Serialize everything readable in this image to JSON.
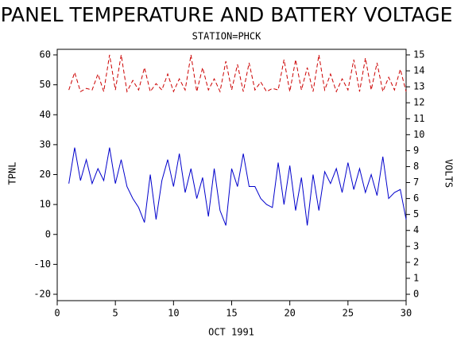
{
  "chart_data": {
    "type": "line",
    "title": "PANEL TEMPERATURE AND BATTERY VOLTAGE",
    "subtitle": "STATION=PHCK",
    "xlabel": "OCT 1991",
    "ylabel": "TPNL",
    "y2label": "VOLTS",
    "x": [
      1,
      1.5,
      2,
      2.5,
      3,
      3.5,
      4,
      4.5,
      5,
      5.5,
      6,
      6.5,
      7,
      7.5,
      8,
      8.5,
      9,
      9.5,
      10,
      10.5,
      11,
      11.5,
      12,
      12.5,
      13,
      13.5,
      14,
      14.5,
      15,
      15.5,
      16,
      16.5,
      17,
      17.5,
      18,
      18.5,
      19,
      19.5,
      20,
      20.5,
      21,
      21.5,
      22,
      22.5,
      23,
      23.5,
      24,
      24.5,
      25,
      25.5,
      26,
      26.5,
      27,
      27.5,
      28,
      28.5,
      29,
      29.5,
      30
    ],
    "series": [
      {
        "name": "TPNL",
        "color": "#0000cc",
        "axis": "y",
        "values": [
          17,
          29,
          18,
          25,
          17,
          22,
          18,
          29,
          17,
          25,
          16,
          12,
          9,
          4,
          20,
          5,
          18,
          25,
          16,
          27,
          14,
          22,
          12,
          19,
          6,
          22,
          8,
          3,
          22,
          16,
          27,
          16,
          16,
          12,
          10,
          9,
          24,
          10,
          23,
          8,
          19,
          3,
          20,
          8,
          21,
          17,
          22,
          14,
          24,
          15,
          22,
          14,
          20,
          13,
          26,
          12,
          14,
          15,
          5
        ]
      },
      {
        "name": "VOLTS",
        "color": "#cc0000",
        "axis": "y2",
        "dashed": true,
        "values": [
          12.8,
          13.9,
          12.7,
          12.9,
          12.8,
          13.8,
          12.7,
          15,
          12.8,
          15,
          12.7,
          13.4,
          12.8,
          14.2,
          12.7,
          13.2,
          12.8,
          13.8,
          12.7,
          13.5,
          12.8,
          15,
          12.7,
          14.2,
          12.8,
          13.5,
          12.7,
          14.6,
          12.8,
          14.4,
          12.7,
          14.5,
          12.8,
          13.3,
          12.7,
          12.9,
          12.8,
          14.7,
          12.7,
          14.7,
          12.8,
          14.2,
          12.7,
          15,
          12.8,
          13.8,
          12.7,
          13.5,
          12.8,
          14.7,
          12.7,
          14.8,
          12.8,
          14.5,
          12.7,
          13.6,
          12.8,
          14.1,
          12.7
        ]
      }
    ],
    "xlim": [
      0,
      30
    ],
    "xticks": [
      0,
      5,
      10,
      15,
      20,
      25,
      30
    ],
    "ylim": [
      -20,
      60
    ],
    "yticks": [
      -20,
      -10,
      0,
      10,
      20,
      30,
      40,
      50,
      60
    ],
    "y2lim": [
      0,
      15
    ],
    "y2ticks": [
      0,
      1,
      2,
      3,
      4,
      5,
      6,
      7,
      8,
      9,
      10,
      11,
      12,
      13,
      14,
      15
    ]
  }
}
